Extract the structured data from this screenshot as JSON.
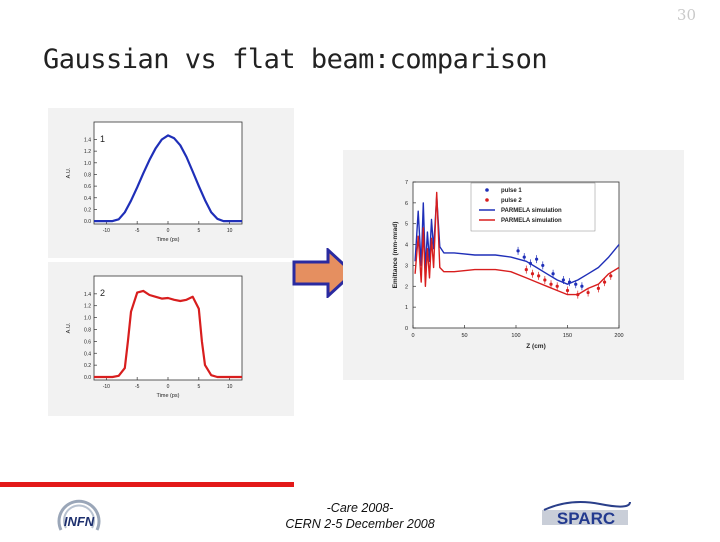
{
  "slide": {
    "number": "30",
    "title": "Gaussian vs flat beam:comparison",
    "footer_line1": "-Care 2008-",
    "footer_line2": "CERN 2-5 December 2008",
    "accent_color": "#e31919"
  },
  "logos": {
    "left": "INFN",
    "right": "SPARC"
  },
  "chart_data": [
    {
      "type": "line",
      "panel_label": "1",
      "ylabel": "A.U.",
      "xlabel": "Time (ps)",
      "color": "#1f2fb8",
      "xlim": [
        -12,
        12
      ],
      "ylim": [
        -0.05,
        1.7
      ],
      "xticks": [
        -10,
        -5,
        0,
        5,
        10
      ],
      "xtick_labels": [
        "-10",
        "-5",
        "0",
        "5",
        "10"
      ],
      "yticks": [
        0.0,
        0.2,
        0.4,
        0.6,
        0.8,
        1.0,
        1.2,
        1.4
      ],
      "ytick_labels": [
        "0.0",
        "0.2",
        "0.4",
        "0.6",
        "0.8",
        "1.0",
        "1.2",
        "1.4"
      ],
      "x": [
        -12,
        -9,
        -8,
        -7,
        -6,
        -5,
        -4,
        -3,
        -2,
        -1,
        0,
        1,
        2,
        3,
        4,
        5,
        6,
        7,
        8,
        9,
        12
      ],
      "y": [
        0.0,
        0.0,
        0.03,
        0.15,
        0.35,
        0.58,
        0.82,
        1.05,
        1.25,
        1.4,
        1.47,
        1.42,
        1.3,
        1.1,
        0.85,
        0.6,
        0.36,
        0.15,
        0.04,
        0.0,
        0.0
      ]
    },
    {
      "type": "line",
      "panel_label": "2",
      "ylabel": "A.U.",
      "xlabel": "Time (ps)",
      "color": "#d81e1e",
      "xlim": [
        -12,
        12
      ],
      "ylim": [
        -0.05,
        1.7
      ],
      "xticks": [
        -10,
        -5,
        0,
        5,
        10
      ],
      "xtick_labels": [
        "-10",
        "-5",
        "0",
        "5",
        "10"
      ],
      "yticks": [
        0.0,
        0.2,
        0.4,
        0.6,
        0.8,
        1.0,
        1.2,
        1.4
      ],
      "ytick_labels": [
        "0.0",
        "0.2",
        "0.4",
        "0.6",
        "0.8",
        "1.0",
        "1.2",
        "1.4"
      ],
      "x": [
        -12,
        -9,
        -8,
        -7,
        -6.5,
        -6,
        -5,
        -4,
        -3,
        -2,
        -1,
        0,
        1,
        2,
        3,
        4,
        5,
        5.5,
        6,
        7,
        8,
        12
      ],
      "y": [
        0.0,
        0.0,
        0.02,
        0.15,
        0.6,
        1.1,
        1.42,
        1.45,
        1.38,
        1.35,
        1.32,
        1.33,
        1.3,
        1.28,
        1.3,
        1.35,
        1.15,
        0.6,
        0.2,
        0.03,
        0.0,
        0.0
      ]
    },
    {
      "type": "line",
      "ylabel": "Emittance (mm-mrad)",
      "xlabel": "Z (cm)",
      "xlim": [
        0,
        200
      ],
      "ylim": [
        0,
        7
      ],
      "xticks": [
        0,
        50,
        100,
        150,
        200
      ],
      "xtick_labels": [
        "0",
        "50",
        "100",
        "150",
        "200"
      ],
      "yticks": [
        0,
        1,
        2,
        3,
        4,
        5,
        6,
        7
      ],
      "ytick_labels": [
        "0",
        "1",
        "2",
        "3",
        "4",
        "5",
        "6",
        "7"
      ],
      "legend": [
        "pulse 1",
        "pulse 2",
        "PARMELA simulation",
        "PARMELA simulation"
      ],
      "series": [
        {
          "name": "PARMELA simulation",
          "color": "#1f2fb8",
          "x": [
            2,
            5,
            8,
            10,
            12,
            14,
            16,
            18,
            20,
            23,
            26,
            30,
            40,
            60,
            80,
            95,
            110,
            120,
            130,
            140,
            150,
            160,
            170,
            180,
            190,
            200
          ],
          "y": [
            3.2,
            5.6,
            3.0,
            6.0,
            2.8,
            4.6,
            3.2,
            5.2,
            3.8,
            6.3,
            3.9,
            3.6,
            3.6,
            3.5,
            3.5,
            3.4,
            3.2,
            2.9,
            2.6,
            2.3,
            2.1,
            2.3,
            2.6,
            2.9,
            3.4,
            4.0
          ]
        },
        {
          "name": "PARMELA simulation",
          "color": "#d81e1e",
          "x": [
            2,
            5,
            8,
            10,
            12,
            14,
            16,
            18,
            20,
            23,
            26,
            30,
            40,
            60,
            80,
            95,
            110,
            120,
            130,
            140,
            150,
            160,
            170,
            180,
            190,
            200
          ],
          "y": [
            2.6,
            4.4,
            2.2,
            4.8,
            2.0,
            3.8,
            2.4,
            4.3,
            2.9,
            6.5,
            2.9,
            2.7,
            2.7,
            2.8,
            2.8,
            2.7,
            2.4,
            2.2,
            2.0,
            1.8,
            1.6,
            1.6,
            1.9,
            2.1,
            2.6,
            2.9
          ]
        },
        {
          "name": "pulse 1",
          "color": "#1f2fb8",
          "x": [
            102,
            108,
            114,
            120,
            126,
            136,
            146,
            152,
            158,
            164
          ],
          "y": [
            3.7,
            3.4,
            3.1,
            3.3,
            3.0,
            2.6,
            2.3,
            2.2,
            2.1,
            2.0
          ]
        },
        {
          "name": "pulse 2",
          "color": "#d81e1e",
          "x": [
            110,
            116,
            122,
            128,
            134,
            140,
            150,
            160,
            170,
            180,
            186,
            192
          ],
          "y": [
            2.8,
            2.6,
            2.5,
            2.3,
            2.1,
            2.0,
            1.8,
            1.6,
            1.7,
            1.9,
            2.2,
            2.5
          ]
        }
      ]
    }
  ]
}
